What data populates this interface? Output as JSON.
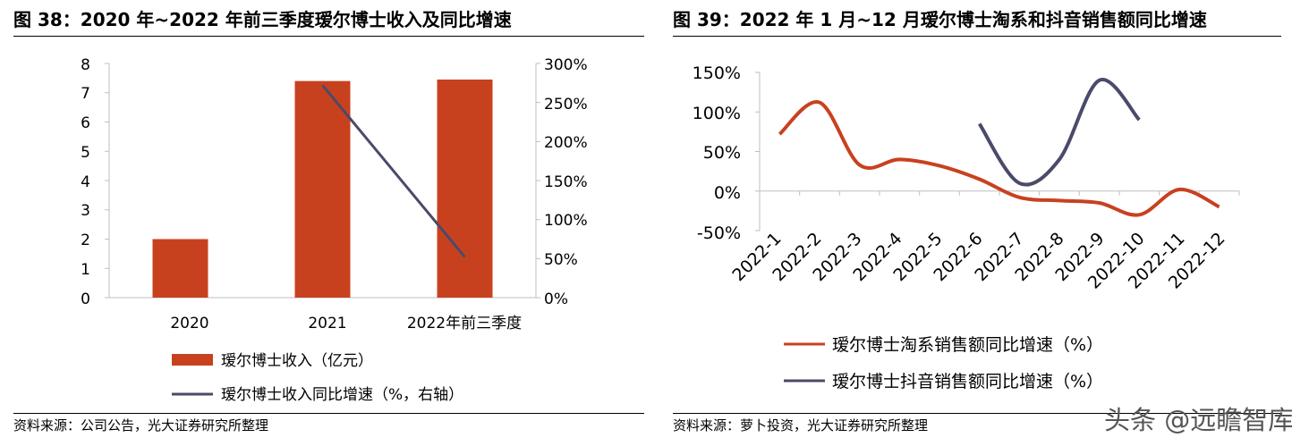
{
  "left": {
    "title": "图 38：2020 年~2022 年前三季度瑷尔博士收入及同比增速",
    "source": "资料来源：公司公告，光大证券研究所整理",
    "legend": {
      "bar": "瑷尔博士收入（亿元）",
      "line": "瑷尔博士收入同比增速（%，右轴）"
    },
    "y_left_ticks": [
      "0",
      "1",
      "2",
      "3",
      "4",
      "5",
      "6",
      "7",
      "8"
    ],
    "y_right_ticks": [
      "0%",
      "50%",
      "100%",
      "150%",
      "200%",
      "250%",
      "300%"
    ]
  },
  "right": {
    "title": "图 39：2022 年 1 月~12 月瑷尔博士淘系和抖音销售额同比增速",
    "source": "资料来源：萝卜投资，光大证券研究所整理",
    "legend": {
      "tmall": "瑷尔博士淘系销售额同比增速（%）",
      "douyin": "瑷尔博士抖音销售额同比增速（%）"
    },
    "y_ticks": [
      "-50%",
      "0%",
      "50%",
      "100%",
      "150%"
    ]
  },
  "watermark": "头条 @远瞻智库",
  "colors": {
    "bar": "#c8411f",
    "line_dark": "#4a4a6a",
    "line_red": "#c8411f"
  },
  "chart_data": [
    {
      "type": "bar",
      "title": "图 38：2020 年~2022 年前三季度瑷尔博士收入及同比增速",
      "categories": [
        "2020",
        "2021",
        "2022年前三季度"
      ],
      "series": [
        {
          "name": "瑷尔博士收入（亿元）",
          "axis": "left",
          "type": "bar",
          "values": [
            2.0,
            7.4,
            7.45
          ]
        },
        {
          "name": "瑷尔博士收入同比增速（%，右轴）",
          "axis": "right",
          "type": "line",
          "values": [
            null,
            272,
            52
          ]
        }
      ],
      "ylim_left": [
        0,
        8
      ],
      "ylim_right": [
        0,
        300
      ],
      "legend_position": "bottom"
    },
    {
      "type": "line",
      "title": "图 39：2022 年 1 月~12 月瑷尔博士淘系和抖音销售额同比增速",
      "categories": [
        "2022-1",
        "2022-2",
        "2022-3",
        "2022-4",
        "2022-5",
        "2022-6",
        "2022-7",
        "2022-8",
        "2022-9",
        "2022-10",
        "2022-11",
        "2022-12"
      ],
      "series": [
        {
          "name": "瑷尔博士淘系销售额同比增速（%）",
          "values": [
            72,
            112,
            33,
            40,
            32,
            15,
            -8,
            -12,
            -15,
            -30,
            2,
            -20
          ]
        },
        {
          "name": "瑷尔博士抖音销售额同比增速（%）",
          "values": [
            null,
            null,
            null,
            null,
            null,
            85,
            10,
            40,
            140,
            90,
            null,
            null
          ]
        }
      ],
      "ylim": [
        -50,
        150
      ],
      "legend_position": "bottom"
    }
  ]
}
